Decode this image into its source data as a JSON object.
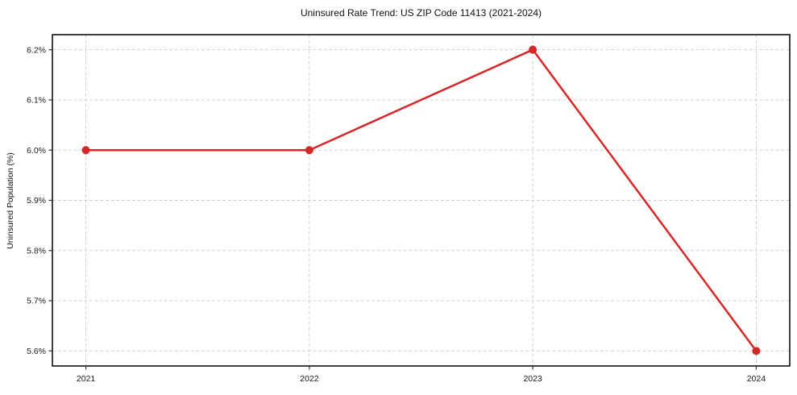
{
  "chart_data": {
    "type": "line",
    "title": "Uninsured Rate Trend: US ZIP Code 11413 (2021-2024)",
    "xlabel": "",
    "ylabel": "Uninsured Population (%)",
    "x": [
      2021,
      2022,
      2023,
      2024
    ],
    "x_tick_labels": [
      "2021",
      "2022",
      "2023",
      "2024"
    ],
    "series": [
      {
        "name": "Uninsured rate",
        "values": [
          6.0,
          6.0,
          6.2,
          5.6
        ]
      }
    ],
    "y_ticks": [
      5.6,
      5.7,
      5.8,
      5.9,
      6.0,
      6.1,
      6.2
    ],
    "y_tick_labels": [
      "5.6%",
      "5.7%",
      "5.8%",
      "5.9%",
      "6.0%",
      "6.1%",
      "6.2%"
    ],
    "xlim": [
      2020.85,
      2024.15
    ],
    "ylim": [
      5.57,
      6.23
    ],
    "grid": true,
    "grid_style": "dashed",
    "legend": "none",
    "line_color": "#d62728",
    "marker": "circle",
    "marker_color": "#d62728",
    "grid_color": "#cccccc",
    "spine_color": "#000000",
    "tick_color": "#333333"
  }
}
